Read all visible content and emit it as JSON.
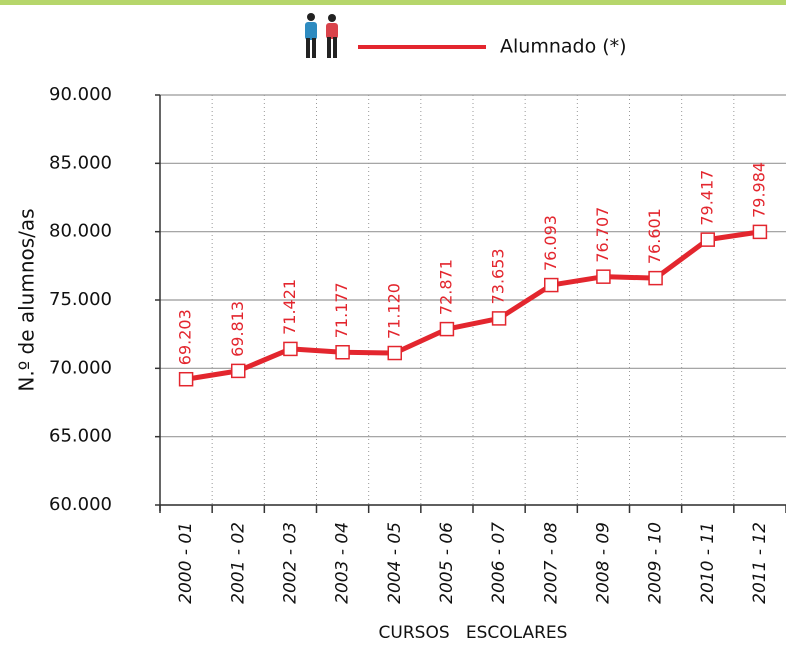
{
  "chart_data": {
    "type": "line",
    "y_label": "N.º de alumnos/as",
    "x_label": "CURSOS   ESCOLARES",
    "categories": [
      "2000 - 01",
      "2001 - 02",
      "2002 - 03",
      "2003 - 04",
      "2004 - 05",
      "2005 - 06",
      "2006 - 07",
      "2007 - 08",
      "2008 - 09",
      "2009 - 10",
      "2010 - 11",
      "2011 - 12"
    ],
    "series": [
      {
        "name": "Alumnado (*)",
        "color": "#e3262e",
        "values": [
          69203,
          69813,
          71421,
          71177,
          71120,
          72871,
          73653,
          76093,
          76707,
          76601,
          79417,
          79984
        ],
        "value_labels": [
          "69.203",
          "69.813",
          "71.421",
          "71.177",
          "71.120",
          "72.871",
          "73.653",
          "76.093",
          "76.707",
          "76.601",
          "79.417",
          "79.984"
        ]
      }
    ],
    "ylim": [
      60000,
      90000
    ],
    "yticks": [
      {
        "value": 60000,
        "label": "60.000"
      },
      {
        "value": 65000,
        "label": "65.000"
      },
      {
        "value": 70000,
        "label": "70.000"
      },
      {
        "value": 75000,
        "label": "75.000"
      },
      {
        "value": 80000,
        "label": "80.000"
      },
      {
        "value": 85000,
        "label": "85.000"
      },
      {
        "value": 90000,
        "label": "90.000"
      }
    ],
    "grid": true,
    "legend": "top"
  }
}
